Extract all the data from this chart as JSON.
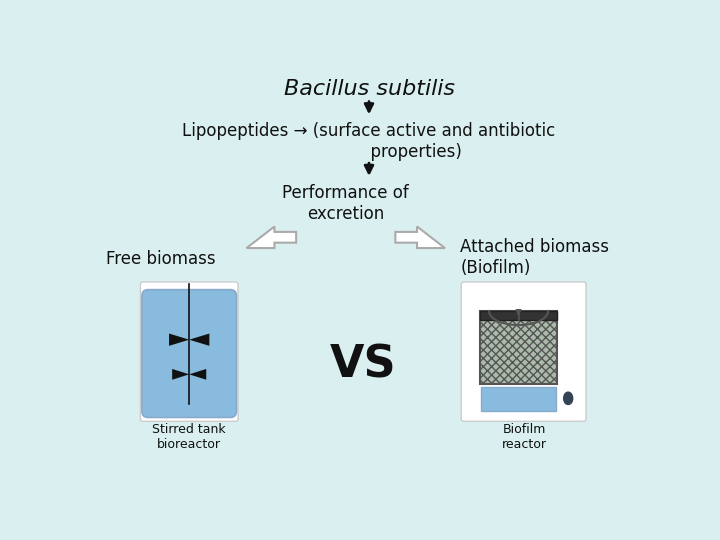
{
  "background_color": "#daf0f0",
  "title": "Bacillus subtilis",
  "title_fontsize": 16,
  "title_style": "italic",
  "performance_text": "Performance of\nexcretion",
  "free_biomass_text": "Free biomass",
  "attached_biomass_text": "Attached biomass\n(Biofilm)",
  "vs_text": "VS",
  "stirred_tank_text": "Stirred tank\nbioreactor",
  "biofilm_reactor_text": "Biofilm\nreactor",
  "text_color": "#111111",
  "arrow_color": "#111111",
  "reactor_bg": "#ffffff",
  "reactor_blue": "#88bbdd",
  "biofilm_gray": "#999999",
  "biofilm_dark": "#444444"
}
